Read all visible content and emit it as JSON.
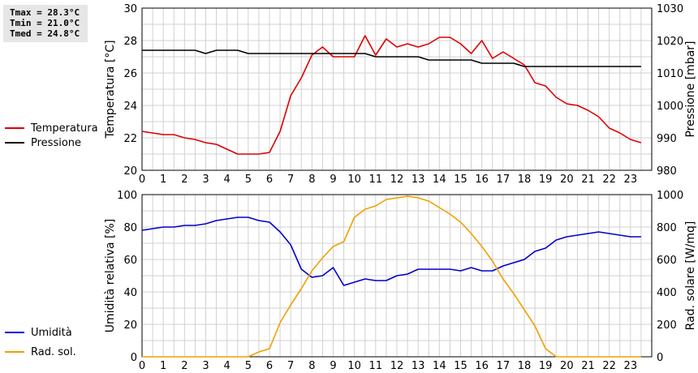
{
  "stats": {
    "tmax": "Tmax = 28.3°C",
    "tmin": "Tmin = 21.0°C",
    "tmed": "Tmed = 24.8°C"
  },
  "colors": {
    "temperature": "#dd0000",
    "pressure": "#000000",
    "humidity": "#0000cc",
    "radiation": "#f0a000",
    "grid": "#d0d0d0"
  },
  "chart_data": [
    {
      "type": "line",
      "xlim": [
        0,
        24
      ],
      "xticks": [
        0,
        1,
        2,
        3,
        4,
        5,
        6,
        7,
        8,
        9,
        10,
        11,
        12,
        13,
        14,
        15,
        16,
        17,
        18,
        19,
        20,
        21,
        22,
        23
      ],
      "y_left": {
        "label": "Temperatura [°C]",
        "lim": [
          20,
          30
        ],
        "ticks": [
          20,
          22,
          24,
          26,
          28,
          30
        ]
      },
      "y_right": {
        "label": "Pressione [mbar]",
        "lim": [
          980,
          1030
        ],
        "ticks": [
          980,
          990,
          1000,
          1010,
          1020,
          1030
        ]
      },
      "grid": true,
      "legend_position": "left",
      "series": [
        {
          "name": "Temperatura",
          "axis": "left",
          "color_key": "temperature",
          "x": [
            0,
            0.5,
            1,
            1.5,
            2,
            2.5,
            3,
            3.5,
            4,
            4.5,
            5,
            5.5,
            6,
            6.5,
            7,
            7.5,
            8,
            8.5,
            9,
            9.5,
            10,
            10.5,
            11,
            11.5,
            12,
            12.5,
            13,
            13.5,
            14,
            14.5,
            15,
            15.5,
            16,
            16.5,
            17,
            17.5,
            18,
            18.5,
            19,
            19.5,
            20,
            20.5,
            21,
            21.5,
            22,
            22.5,
            23,
            23.5
          ],
          "y": [
            22.4,
            22.3,
            22.2,
            22.2,
            22.0,
            21.9,
            21.7,
            21.6,
            21.3,
            21.0,
            21.0,
            21.0,
            21.1,
            22.4,
            24.6,
            25.7,
            27.1,
            27.6,
            27.0,
            27.0,
            27.0,
            28.3,
            27.1,
            28.1,
            27.6,
            27.8,
            27.6,
            27.8,
            28.2,
            28.2,
            27.8,
            27.2,
            28.0,
            26.9,
            27.3,
            26.9,
            26.5,
            25.4,
            25.2,
            24.5,
            24.1,
            24.0,
            23.7,
            23.3,
            22.6,
            22.3,
            21.9,
            21.7
          ]
        },
        {
          "name": "Pressione",
          "axis": "right",
          "color_key": "pressure",
          "x": [
            0,
            0.5,
            1,
            1.5,
            2,
            2.5,
            3,
            3.5,
            4,
            4.5,
            5,
            5.5,
            6,
            6.5,
            7,
            7.5,
            8,
            8.5,
            9,
            9.5,
            10,
            10.5,
            11,
            11.5,
            12,
            12.5,
            13,
            13.5,
            14,
            14.5,
            15,
            15.5,
            16,
            16.5,
            17,
            17.5,
            18,
            18.5,
            19,
            19.5,
            20,
            20.5,
            21,
            21.5,
            22,
            22.5,
            23,
            23.5
          ],
          "y": [
            1017,
            1017,
            1017,
            1017,
            1017,
            1017,
            1016,
            1017,
            1017,
            1017,
            1016,
            1016,
            1016,
            1016,
            1016,
            1016,
            1016,
            1016,
            1016,
            1016,
            1016,
            1016,
            1015,
            1015,
            1015,
            1015,
            1015,
            1014,
            1014,
            1014,
            1014,
            1014,
            1013,
            1013,
            1013,
            1013,
            1012,
            1012,
            1012,
            1012,
            1012,
            1012,
            1012,
            1012,
            1012,
            1012,
            1012,
            1012
          ]
        }
      ]
    },
    {
      "type": "line",
      "xlim": [
        0,
        24
      ],
      "xticks": [
        0,
        1,
        2,
        3,
        4,
        5,
        6,
        7,
        8,
        9,
        10,
        11,
        12,
        13,
        14,
        15,
        16,
        17,
        18,
        19,
        20,
        21,
        22,
        23
      ],
      "y_left": {
        "label": "Umidità relativa [%]",
        "lim": [
          0,
          100
        ],
        "ticks": [
          0,
          20,
          40,
          60,
          80,
          100
        ]
      },
      "y_right": {
        "label": "Rad. solare [W/mq]",
        "lim": [
          0,
          1000
        ],
        "ticks": [
          0,
          200,
          400,
          600,
          800,
          1000
        ]
      },
      "grid": true,
      "legend_position": "left",
      "series": [
        {
          "name": "Umidità",
          "axis": "left",
          "color_key": "humidity",
          "x": [
            0,
            0.5,
            1,
            1.5,
            2,
            2.5,
            3,
            3.5,
            4,
            4.5,
            5,
            5.5,
            6,
            6.5,
            7,
            7.5,
            8,
            8.5,
            9,
            9.5,
            10,
            10.5,
            11,
            11.5,
            12,
            12.5,
            13,
            13.5,
            14,
            14.5,
            15,
            15.5,
            16,
            16.5,
            17,
            17.5,
            18,
            18.5,
            19,
            19.5,
            20,
            20.5,
            21,
            21.5,
            22,
            22.5,
            23,
            23.5
          ],
          "y": [
            78,
            79,
            80,
            80,
            81,
            81,
            82,
            84,
            85,
            86,
            86,
            84,
            83,
            77,
            69,
            54,
            49,
            50,
            55,
            44,
            46,
            48,
            47,
            47,
            50,
            51,
            54,
            54,
            54,
            54,
            53,
            55,
            53,
            53,
            56,
            58,
            60,
            65,
            67,
            72,
            74,
            75,
            76,
            77,
            76,
            75,
            74,
            74
          ]
        },
        {
          "name": "Rad. sol.",
          "axis": "right",
          "color_key": "radiation",
          "x": [
            0,
            0.5,
            1,
            1.5,
            2,
            2.5,
            3,
            3.5,
            4,
            4.5,
            5,
            5.5,
            6,
            6.5,
            7,
            7.5,
            8,
            8.5,
            9,
            9.5,
            10,
            10.5,
            11,
            11.5,
            12,
            12.5,
            13,
            13.5,
            14,
            14.5,
            15,
            15.5,
            16,
            16.5,
            17,
            17.5,
            18,
            18.5,
            19,
            19.5,
            20,
            20.5,
            21,
            21.5,
            22,
            22.5,
            23,
            23.5
          ],
          "y": [
            0,
            0,
            0,
            0,
            0,
            0,
            0,
            0,
            0,
            0,
            0,
            30,
            50,
            210,
            320,
            420,
            530,
            610,
            680,
            710,
            860,
            910,
            930,
            970,
            980,
            990,
            980,
            960,
            920,
            880,
            830,
            760,
            680,
            590,
            480,
            390,
            290,
            190,
            50,
            0,
            0,
            0,
            0,
            0,
            0,
            0,
            0,
            0
          ]
        }
      ]
    }
  ]
}
